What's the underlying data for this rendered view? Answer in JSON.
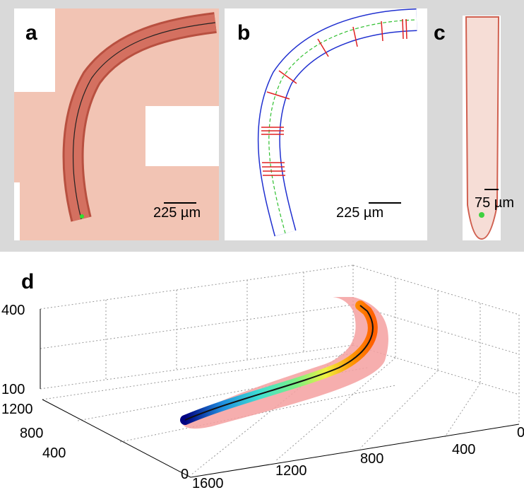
{
  "panels": [
    {
      "label": "a",
      "scale_bar": "225 µm"
    },
    {
      "label": "b",
      "scale_bar": "225 µm"
    },
    {
      "label": "c",
      "scale_bar": "75 µm"
    },
    {
      "label": "d",
      "z_ticks": [
        400,
        100
      ],
      "y_ticks": [
        1200,
        800,
        400,
        0
      ],
      "x_ticks": [
        1600,
        1200,
        800,
        400,
        0
      ]
    }
  ]
}
